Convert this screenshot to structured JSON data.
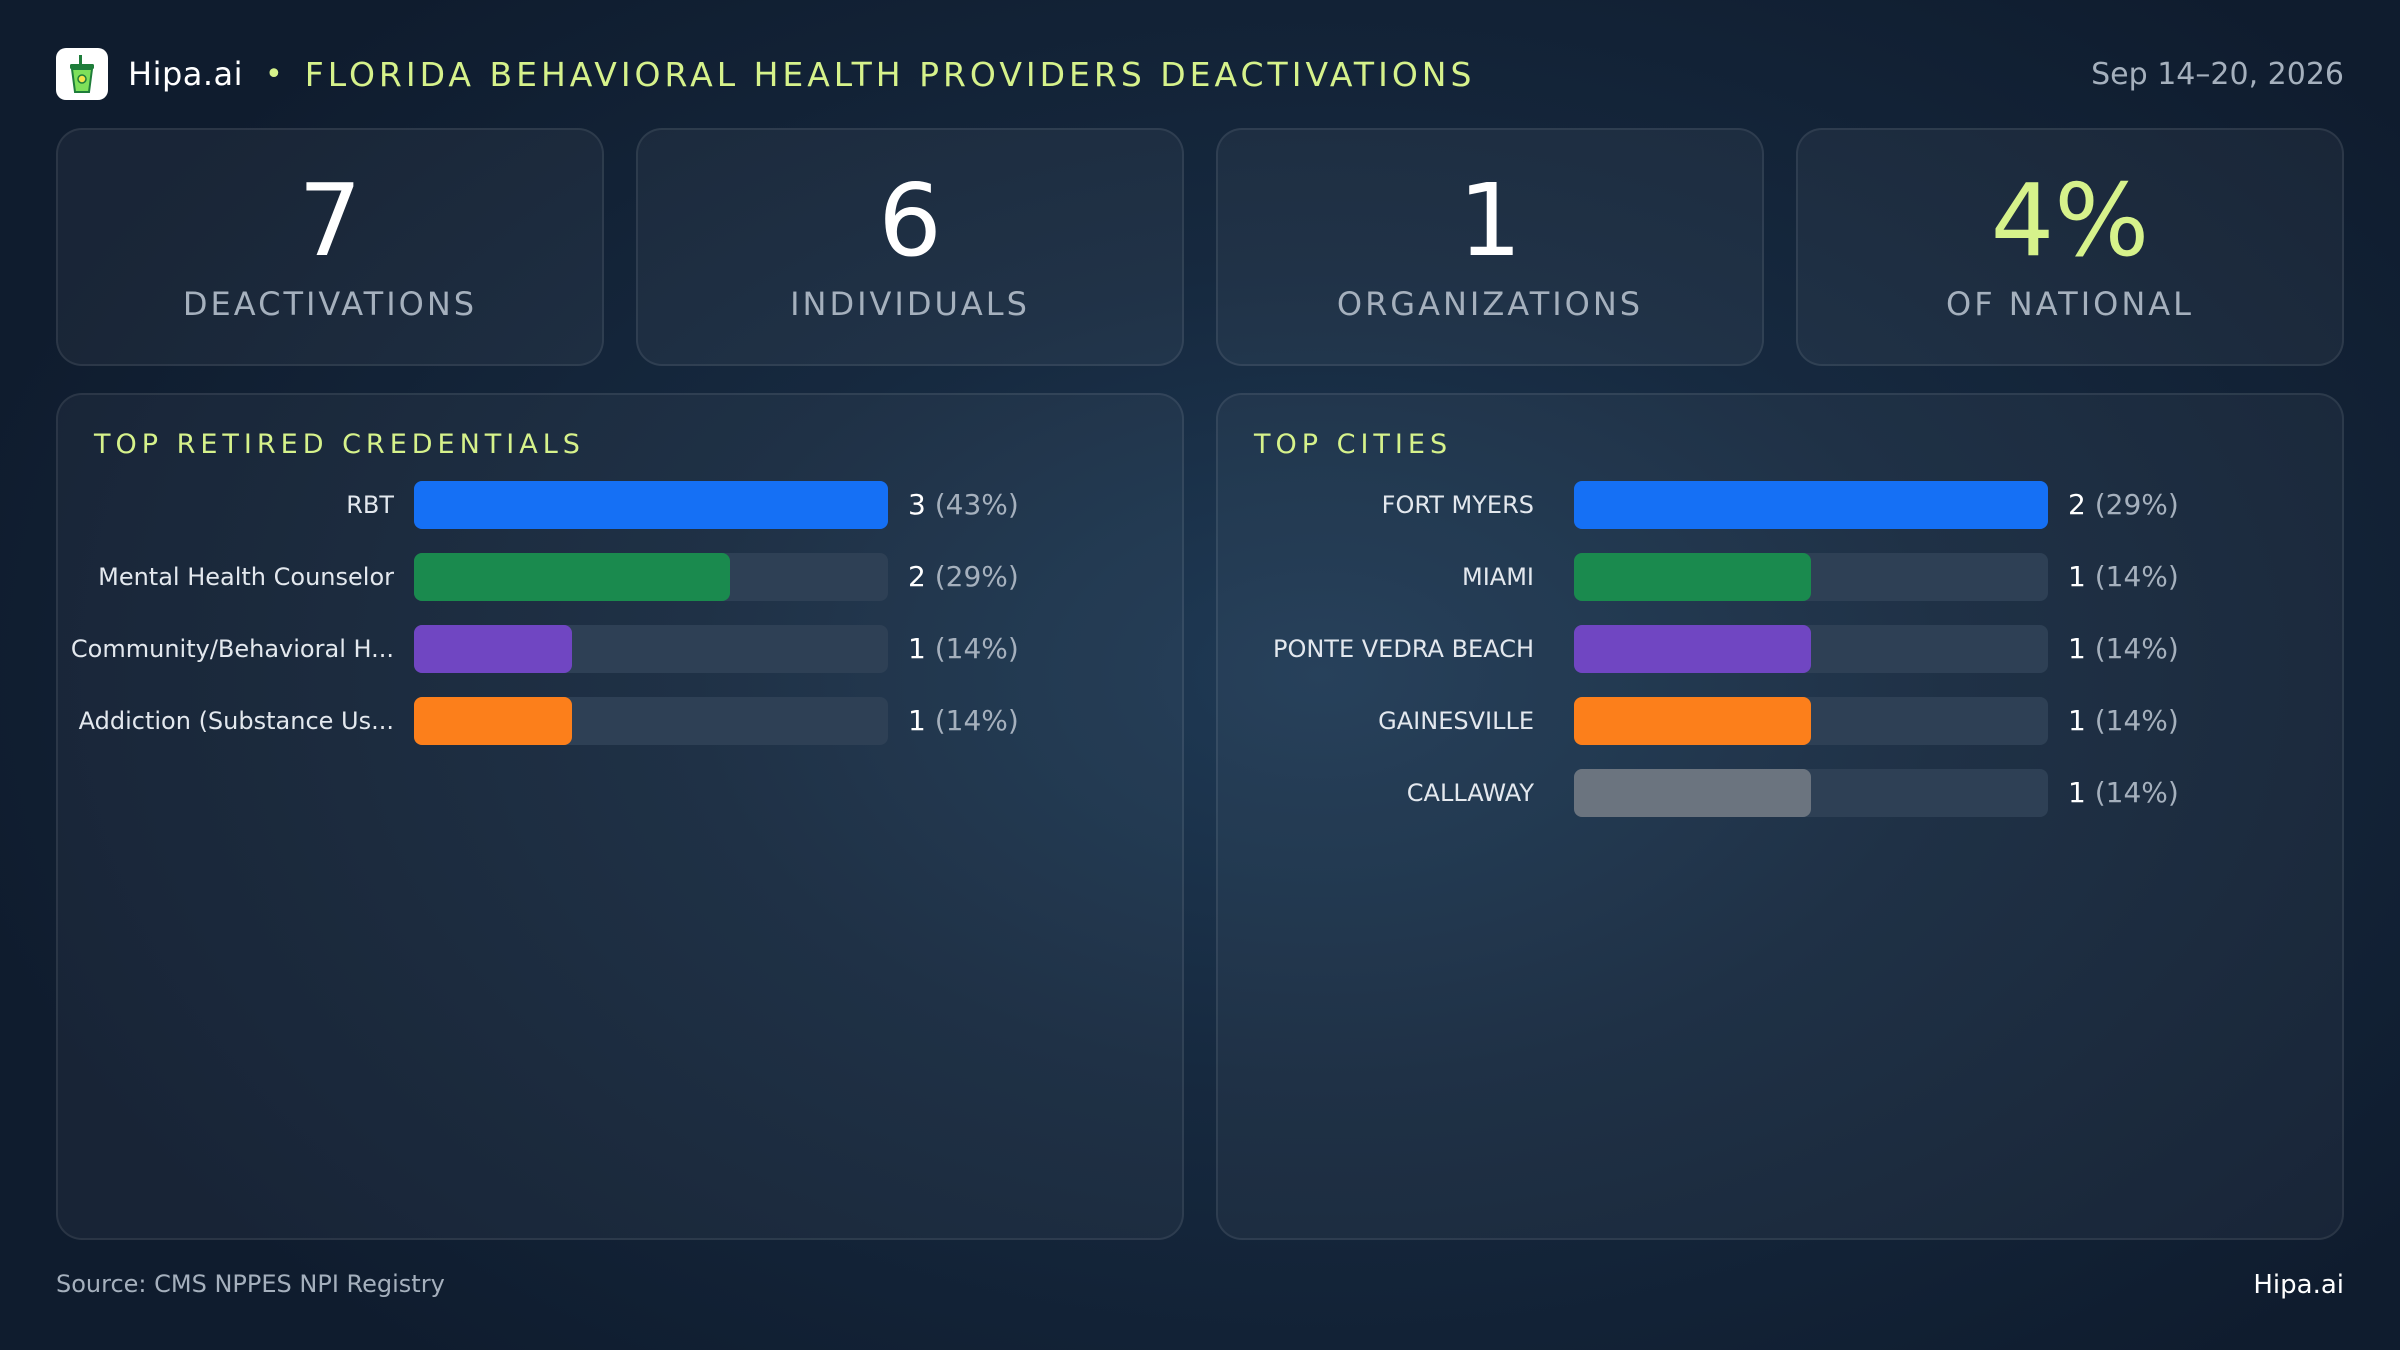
{
  "header": {
    "brand": "Hipa.ai",
    "separator": "•",
    "title": "FLORIDA BEHAVIORAL HEALTH PROVIDERS DEACTIVATIONS",
    "date": "Sep 14–20, 2026",
    "logo_icon": "green-cup-icon"
  },
  "kpis": [
    {
      "value": "7",
      "label": "DEACTIVATIONS"
    },
    {
      "value": "6",
      "label": "INDIVIDUALS"
    },
    {
      "value": "1",
      "label": "ORGANIZATIONS"
    },
    {
      "value": "4%",
      "label": "OF NATIONAL"
    }
  ],
  "colors": {
    "accent": "#d6f28b",
    "blue": "#1570f5",
    "green": "#1a8a4e",
    "purple": "#7046c2",
    "orange": "#fc7f1b",
    "gray": "#6b747f"
  },
  "chart_data": [
    {
      "type": "bar",
      "orientation": "horizontal",
      "title": "TOP RETIRED CREDENTIALS",
      "categories": [
        "RBT",
        "Mental Health Counselor",
        "Community/Behavioral  H...",
        "Addiction (Substance Us..."
      ],
      "values": [
        3,
        2,
        1,
        1
      ],
      "value_labels": [
        "3",
        "2",
        "1",
        "1"
      ],
      "pct_labels": [
        "(43%)",
        "(29%)",
        "(14%)",
        "(14%)"
      ],
      "colors": [
        "#1570f5",
        "#1a8a4e",
        "#7046c2",
        "#fc7f1b"
      ],
      "xlim": [
        0,
        3
      ]
    },
    {
      "type": "bar",
      "orientation": "horizontal",
      "title": "TOP CITIES",
      "categories": [
        "FORT MYERS",
        "MIAMI",
        "PONTE VEDRA BEACH",
        "GAINESVILLE",
        "CALLAWAY"
      ],
      "values": [
        2,
        1,
        1,
        1,
        1
      ],
      "value_labels": [
        "2",
        "1",
        "1",
        "1",
        "1"
      ],
      "pct_labels": [
        "(29%)",
        "(14%)",
        "(14%)",
        "(14%)",
        "(14%)"
      ],
      "colors": [
        "#1570f5",
        "#1a8a4e",
        "#7046c2",
        "#fc7f1b",
        "#6b747f"
      ],
      "xlim": [
        0,
        2
      ]
    }
  ],
  "footer": {
    "source": "Source: CMS NPPES NPI Registry",
    "brand": "Hipa.ai"
  }
}
